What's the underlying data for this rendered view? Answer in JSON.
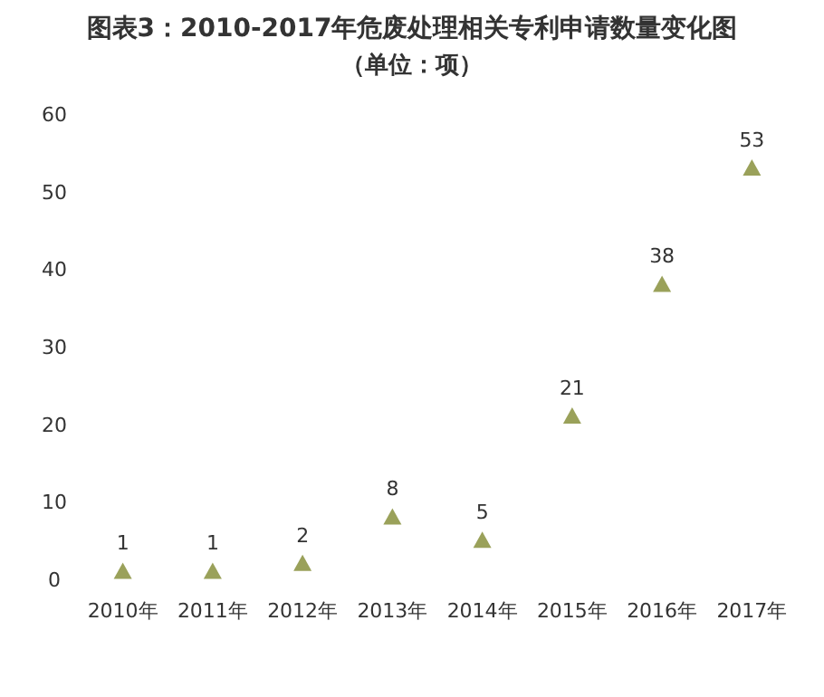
{
  "chart_data": {
    "type": "scatter",
    "title": "图表3：2010-2017年危废处理相关专利申请数量变化图",
    "subtitle": "（单位：项）",
    "categories": [
      "2010年",
      "2011年",
      "2012年",
      "2013年",
      "2014年",
      "2015年",
      "2016年",
      "2017年"
    ],
    "values": [
      1,
      1,
      2,
      8,
      5,
      21,
      38,
      53
    ],
    "color": "#9aa15a",
    "marker": "triangle",
    "data_labels": true,
    "ylim": [
      0,
      60
    ],
    "yticks": [
      0,
      10,
      20,
      30,
      40,
      50,
      60
    ],
    "grid": false
  }
}
